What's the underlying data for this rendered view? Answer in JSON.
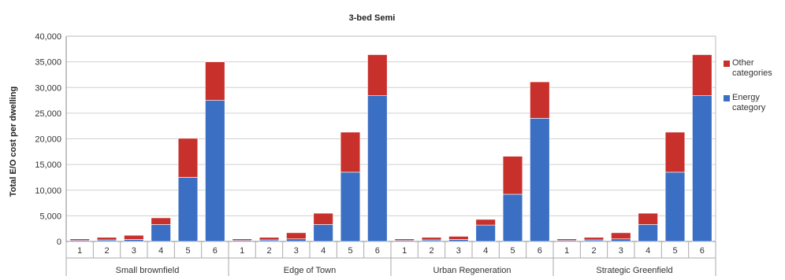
{
  "chart_data": {
    "type": "bar",
    "stacked": true,
    "title": "3-bed Semi",
    "xlabel": "",
    "ylabel": "Total E/O cost per dwelling",
    "ylim": [
      0,
      40000
    ],
    "yticks": [
      "0",
      "5,000",
      "10,000",
      "15,000",
      "20,000",
      "25,000",
      "30,000",
      "35,000",
      "40,000"
    ],
    "grid": true,
    "legend_position": "right",
    "groups": [
      "Small brownfield",
      "Edge of Town",
      "Urban Regeneration",
      "Strategic Greenfield"
    ],
    "categories": [
      "1",
      "2",
      "3",
      "4",
      "5",
      "6"
    ],
    "series": [
      {
        "name": "Energy category",
        "color": "#3a6fc4",
        "values": [
          [
            200,
            300,
            400,
            3300,
            12500,
            27500
          ],
          [
            200,
            300,
            500,
            3300,
            13500,
            28400
          ],
          [
            200,
            300,
            400,
            3200,
            9200,
            24000
          ],
          [
            200,
            300,
            500,
            3300,
            13500,
            28400
          ]
        ]
      },
      {
        "name": "Other categories",
        "color": "#c8302c",
        "values": [
          [
            300,
            500,
            800,
            1300,
            7600,
            7500
          ],
          [
            300,
            500,
            1200,
            2200,
            7800,
            8000
          ],
          [
            300,
            500,
            600,
            1100,
            7400,
            7100
          ],
          [
            300,
            500,
            1200,
            2200,
            7800,
            8000
          ]
        ]
      }
    ]
  }
}
